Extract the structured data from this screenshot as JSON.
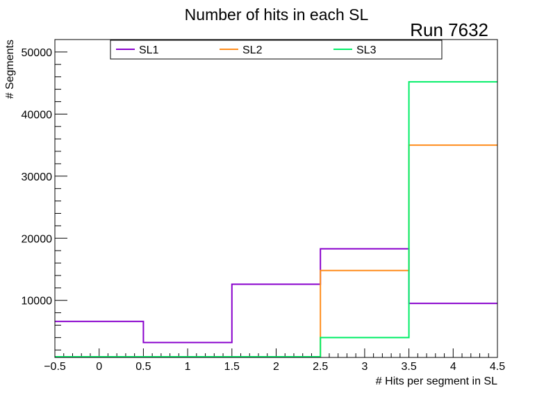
{
  "chart_data": {
    "type": "step-histogram",
    "title": "Number of hits in each SL",
    "run_label": "Run 7632",
    "xlabel": "# Hits per segment in SL",
    "ylabel": "# Segments",
    "xlim": [
      -0.5,
      4.5
    ],
    "ylim": [
      800,
      52000
    ],
    "bin_edges": [
      -0.5,
      0.5,
      1.5,
      2.5,
      3.5,
      4.5
    ],
    "x_tick_labels": [
      "−0.5",
      "0",
      "0.5",
      "1",
      "1.5",
      "2",
      "2.5",
      "3",
      "3.5",
      "4",
      "4.5"
    ],
    "y_tick_labels": [
      "10000",
      "20000",
      "30000",
      "40000",
      "50000"
    ],
    "legend_position": "top",
    "series": [
      {
        "name": "SL1",
        "color": "#8800cc",
        "values": [
          6600,
          3200,
          12600,
          18300,
          9500
        ]
      },
      {
        "name": "SL2",
        "color": "#ff8c1a",
        "values": [
          800,
          800,
          800,
          14800,
          35000
        ]
      },
      {
        "name": "SL3",
        "color": "#00ee66",
        "values": [
          800,
          800,
          800,
          4000,
          45200
        ]
      }
    ]
  }
}
